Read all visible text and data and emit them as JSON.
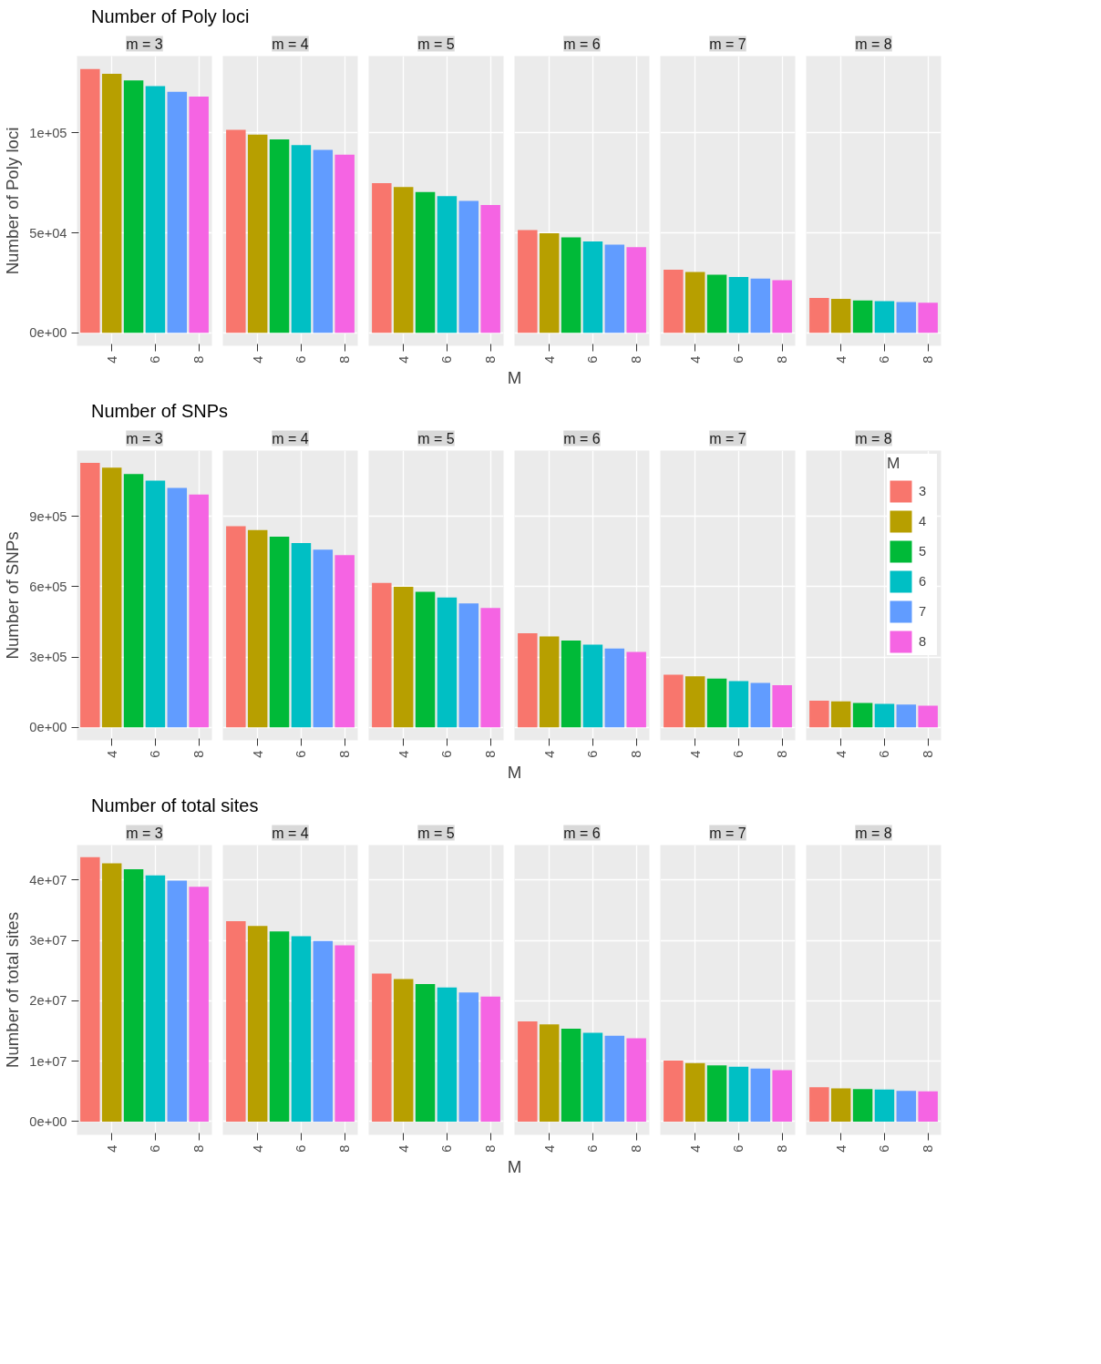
{
  "chart_data": [
    {
      "type": "bar",
      "title": "Number of Poly loci",
      "subtitle": "m = 3",
      "ylabel": "Number of Poly loci",
      "x": [
        3,
        4,
        5,
        6,
        7,
        8
      ],
      "values": [
        132000,
        129600,
        126300,
        123500,
        120600,
        118200
      ],
      "colors": [
        "#f8766d",
        "#b79f00",
        "#00ba38",
        "#00bfc4",
        "#619cff",
        "#f564e3"
      ],
      "xlim": [
        2.4,
        8.6
      ],
      "xticks": [
        4,
        6,
        8
      ],
      "ylim": [
        -6500,
        138500
      ],
      "yticks": [
        {
          "value": 0,
          "label": "0e+00"
        },
        {
          "value": 50000,
          "label": "5e+04"
        },
        {
          "value": 100000,
          "label": "1e+05"
        }
      ],
      "grid": true
    },
    {
      "type": "bar",
      "subtitle": "m = 4",
      "x": [
        3,
        4,
        5,
        6,
        7,
        8
      ],
      "values": [
        101600,
        99200,
        96800,
        93900,
        91500,
        89100
      ],
      "colors": [
        "#f8766d",
        "#b79f00",
        "#00ba38",
        "#00bfc4",
        "#619cff",
        "#f564e3"
      ],
      "xlim": [
        2.4,
        8.6
      ],
      "xticks": [
        4,
        6,
        8
      ],
      "ylim": [
        -6500,
        138500
      ],
      "yticks": [
        0,
        50000,
        100000
      ],
      "grid": true,
      "tick_labels": "x"
    },
    {
      "type": "bar",
      "subtitle": "m = 5",
      "x": [
        3,
        4,
        5,
        6,
        7,
        8
      ],
      "values": [
        74900,
        72900,
        70400,
        68400,
        66000,
        64000
      ],
      "colors": [
        "#f8766d",
        "#b79f00",
        "#00ba38",
        "#00bfc4",
        "#619cff",
        "#f564e3"
      ],
      "xlim": [
        2.4,
        8.6
      ],
      "xticks": [
        4,
        6,
        8
      ],
      "ylim": [
        -6500,
        138500
      ],
      "yticks": [
        0,
        50000,
        100000
      ],
      "grid": true,
      "tick_labels": "x"
    },
    {
      "type": "bar",
      "subtitle": "m = 6",
      "xlabel": "M",
      "x": [
        3,
        4,
        5,
        6,
        7,
        8
      ],
      "values": [
        51400,
        49800,
        47800,
        45700,
        44100,
        42900
      ],
      "colors": [
        "#f8766d",
        "#b79f00",
        "#00ba38",
        "#00bfc4",
        "#619cff",
        "#f564e3"
      ],
      "xlim": [
        2.4,
        8.6
      ],
      "xticks": [
        4,
        6,
        8
      ],
      "ylim": [
        -6500,
        138500
      ],
      "yticks": [
        0,
        50000,
        100000
      ],
      "grid": true,
      "tick_labels": "x"
    },
    {
      "type": "bar",
      "subtitle": "m = 7",
      "x": [
        3,
        4,
        5,
        6,
        7,
        8
      ],
      "values": [
        31600,
        30400,
        29100,
        27900,
        27100,
        26300
      ],
      "colors": [
        "#f8766d",
        "#b79f00",
        "#00ba38",
        "#00bfc4",
        "#619cff",
        "#f564e3"
      ],
      "xlim": [
        2.4,
        8.6
      ],
      "xticks": [
        4,
        6,
        8
      ],
      "ylim": [
        -6500,
        138500
      ],
      "yticks": [
        0,
        50000,
        100000
      ],
      "grid": true,
      "tick_labels": "x"
    },
    {
      "type": "bar",
      "subtitle": "m = 8",
      "x": [
        3,
        4,
        5,
        6,
        7,
        8
      ],
      "values": [
        17400,
        17000,
        16200,
        15800,
        15400,
        15000
      ],
      "colors": [
        "#f8766d",
        "#b79f00",
        "#00ba38",
        "#00bfc4",
        "#619cff",
        "#f564e3"
      ],
      "xlim": [
        2.4,
        8.6
      ],
      "xticks": [
        4,
        6,
        8
      ],
      "ylim": [
        -6500,
        138500
      ],
      "yticks": [
        0,
        50000,
        100000
      ],
      "grid": true,
      "tick_labels": "x"
    },
    {
      "type": "bar",
      "title": "Number of SNPs",
      "subtitle": "m = 3",
      "ylabel": "Number of SNPs",
      "x": [
        3,
        4,
        5,
        6,
        7,
        8
      ],
      "values": [
        1128000,
        1107000,
        1080000,
        1052000,
        1021000,
        993000
      ],
      "colors": [
        "#f8766d",
        "#b79f00",
        "#00ba38",
        "#00bfc4",
        "#619cff",
        "#f564e3"
      ],
      "xlim": [
        2.4,
        8.6
      ],
      "xticks": [
        4,
        6,
        8
      ],
      "ylim": [
        -55000,
        1180000
      ],
      "yticks": [
        {
          "value": 0,
          "label": "0e+00"
        },
        {
          "value": 300000,
          "label": "3e+05"
        },
        {
          "value": 600000,
          "label": "6e+05"
        },
        {
          "value": 900000,
          "label": "9e+05"
        }
      ],
      "grid": true
    },
    {
      "type": "bar",
      "subtitle": "m = 4",
      "x": [
        3,
        4,
        5,
        6,
        7,
        8
      ],
      "values": [
        858000,
        841000,
        813000,
        786000,
        758000,
        734000
      ],
      "colors": [
        "#f8766d",
        "#b79f00",
        "#00ba38",
        "#00bfc4",
        "#619cff",
        "#f564e3"
      ],
      "xlim": [
        2.4,
        8.6
      ],
      "xticks": [
        4,
        6,
        8
      ],
      "ylim": [
        -55000,
        1180000
      ],
      "yticks": [
        0,
        300000,
        600000,
        900000
      ],
      "grid": true,
      "tick_labels": "x"
    },
    {
      "type": "bar",
      "subtitle": "m = 5",
      "x": [
        3,
        4,
        5,
        6,
        7,
        8
      ],
      "values": [
        616000,
        599000,
        578000,
        554000,
        529000,
        509000
      ],
      "colors": [
        "#f8766d",
        "#b79f00",
        "#00ba38",
        "#00bfc4",
        "#619cff",
        "#f564e3"
      ],
      "xlim": [
        2.4,
        8.6
      ],
      "xticks": [
        4,
        6,
        8
      ],
      "ylim": [
        -55000,
        1180000
      ],
      "yticks": [
        0,
        300000,
        600000,
        900000
      ],
      "grid": true,
      "tick_labels": "x"
    },
    {
      "type": "bar",
      "subtitle": "m = 6",
      "xlabel": "M",
      "x": [
        3,
        4,
        5,
        6,
        7,
        8
      ],
      "values": [
        401000,
        388000,
        370000,
        353000,
        336000,
        322000
      ],
      "colors": [
        "#f8766d",
        "#b79f00",
        "#00ba38",
        "#00bfc4",
        "#619cff",
        "#f564e3"
      ],
      "xlim": [
        2.4,
        8.6
      ],
      "xticks": [
        4,
        6,
        8
      ],
      "ylim": [
        -55000,
        1180000
      ],
      "yticks": [
        0,
        300000,
        600000,
        900000
      ],
      "grid": true,
      "tick_labels": "x"
    },
    {
      "type": "bar",
      "subtitle": "m = 7",
      "x": [
        3,
        4,
        5,
        6,
        7,
        8
      ],
      "values": [
        225000,
        218000,
        208000,
        197000,
        190000,
        180000
      ],
      "colors": [
        "#f8766d",
        "#b79f00",
        "#00ba38",
        "#00bfc4",
        "#619cff",
        "#f564e3"
      ],
      "xlim": [
        2.4,
        8.6
      ],
      "xticks": [
        4,
        6,
        8
      ],
      "ylim": [
        -55000,
        1180000
      ],
      "yticks": [
        0,
        300000,
        600000,
        900000
      ],
      "grid": true,
      "tick_labels": "x"
    },
    {
      "type": "bar",
      "subtitle": "m = 8",
      "legend_title": "M",
      "legend": "right",
      "series": [
        {
          "name": "3",
          "color": "#f8766d",
          "x": [
            3
          ],
          "values": [
            114000
          ]
        },
        {
          "name": "4",
          "color": "#b79f00",
          "x": [
            4
          ],
          "values": [
            111000
          ]
        },
        {
          "name": "5",
          "color": "#00ba38",
          "x": [
            5
          ],
          "values": [
            104000
          ]
        },
        {
          "name": "6",
          "color": "#00bfc4",
          "x": [
            6
          ],
          "values": [
            100000
          ]
        },
        {
          "name": "7",
          "color": "#619cff",
          "x": [
            7
          ],
          "values": [
            97000
          ]
        },
        {
          "name": "8",
          "color": "#f564e3",
          "x": [
            8
          ],
          "values": [
            93000
          ]
        }
      ],
      "xlim": [
        2.4,
        8.6
      ],
      "xticks": [
        4,
        6,
        8
      ],
      "ylim": [
        -55000,
        1180000
      ],
      "yticks": [
        0,
        300000,
        600000,
        900000
      ],
      "grid": true,
      "tick_labels": "x"
    },
    {
      "type": "bar",
      "title": "Number of total sites",
      "subtitle": "m = 3",
      "ylabel": "Number of total sites",
      "x": [
        3,
        4,
        5,
        6,
        7,
        8
      ],
      "values": [
        43800000,
        42800000,
        41800000,
        40800000,
        39900000,
        38900000
      ],
      "colors": [
        "#f8766d",
        "#b79f00",
        "#00ba38",
        "#00bfc4",
        "#619cff",
        "#f564e3"
      ],
      "xlim": [
        2.4,
        8.6
      ],
      "xticks": [
        4,
        6,
        8
      ],
      "ylim": [
        -2200000,
        45800000
      ],
      "yticks": [
        {
          "value": 0,
          "label": "0e+00"
        },
        {
          "value": 10000000,
          "label": "1e+07"
        },
        {
          "value": 20000000,
          "label": "2e+07"
        },
        {
          "value": 30000000,
          "label": "3e+07"
        },
        {
          "value": 40000000,
          "label": "4e+07"
        }
      ],
      "grid": true
    },
    {
      "type": "bar",
      "subtitle": "m = 4",
      "x": [
        3,
        4,
        5,
        6,
        7,
        8
      ],
      "values": [
        33200000,
        32400000,
        31500000,
        30700000,
        29900000,
        29200000
      ],
      "colors": [
        "#f8766d",
        "#b79f00",
        "#00ba38",
        "#00bfc4",
        "#619cff",
        "#f564e3"
      ],
      "xlim": [
        2.4,
        8.6
      ],
      "xticks": [
        4,
        6,
        8
      ],
      "ylim": [
        -2200000,
        45800000
      ],
      "yticks": [
        0,
        10000000,
        20000000,
        30000000,
        40000000
      ],
      "grid": true,
      "tick_labels": "x"
    },
    {
      "type": "bar",
      "subtitle": "m = 5",
      "x": [
        3,
        4,
        5,
        6,
        7,
        8
      ],
      "values": [
        24500000,
        23600000,
        22800000,
        22200000,
        21400000,
        20700000
      ],
      "colors": [
        "#f8766d",
        "#b79f00",
        "#00ba38",
        "#00bfc4",
        "#619cff",
        "#f564e3"
      ],
      "xlim": [
        2.4,
        8.6
      ],
      "xticks": [
        4,
        6,
        8
      ],
      "ylim": [
        -2200000,
        45800000
      ],
      "yticks": [
        0,
        10000000,
        20000000,
        30000000,
        40000000
      ],
      "grid": true,
      "tick_labels": "x"
    },
    {
      "type": "bar",
      "subtitle": "m = 6",
      "xlabel": "M",
      "x": [
        3,
        4,
        5,
        6,
        7,
        8
      ],
      "values": [
        16600000,
        16100000,
        15400000,
        14700000,
        14200000,
        13800000
      ],
      "colors": [
        "#f8766d",
        "#b79f00",
        "#00ba38",
        "#00bfc4",
        "#619cff",
        "#f564e3"
      ],
      "xlim": [
        2.4,
        8.6
      ],
      "xticks": [
        4,
        6,
        8
      ],
      "ylim": [
        -2200000,
        45800000
      ],
      "yticks": [
        0,
        10000000,
        20000000,
        30000000,
        40000000
      ],
      "grid": true,
      "tick_labels": "x"
    },
    {
      "type": "bar",
      "subtitle": "m = 7",
      "x": [
        3,
        4,
        5,
        6,
        7,
        8
      ],
      "values": [
        10100000,
        9700000,
        9300000,
        9100000,
        8800000,
        8500000
      ],
      "colors": [
        "#f8766d",
        "#b79f00",
        "#00ba38",
        "#00bfc4",
        "#619cff",
        "#f564e3"
      ],
      "xlim": [
        2.4,
        8.6
      ],
      "xticks": [
        4,
        6,
        8
      ],
      "ylim": [
        -2200000,
        45800000
      ],
      "yticks": [
        0,
        10000000,
        20000000,
        30000000,
        40000000
      ],
      "grid": true,
      "tick_labels": "x"
    },
    {
      "type": "bar",
      "subtitle": "m = 8",
      "x": [
        3,
        4,
        5,
        6,
        7,
        8
      ],
      "values": [
        5700000,
        5500000,
        5400000,
        5300000,
        5100000,
        5000000
      ],
      "colors": [
        "#f8766d",
        "#b79f00",
        "#00ba38",
        "#00bfc4",
        "#619cff",
        "#f564e3"
      ],
      "xlim": [
        2.4,
        8.6
      ],
      "xticks": [
        4,
        6,
        8
      ],
      "ylim": [
        -2200000,
        45800000
      ],
      "yticks": [
        0,
        10000000,
        20000000,
        30000000,
        40000000
      ],
      "grid": true,
      "tick_labels": "x"
    }
  ]
}
